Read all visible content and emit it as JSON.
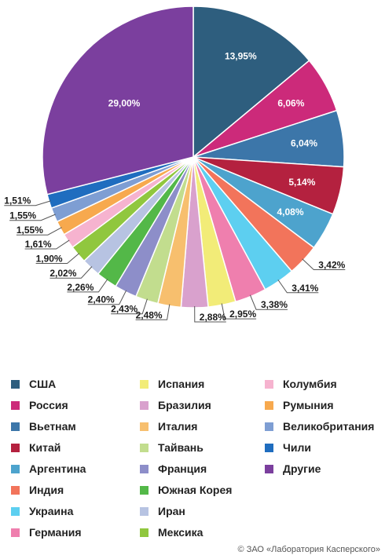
{
  "chart_data": {
    "type": "pie",
    "title": "",
    "start_angle_deg": 0,
    "direction": "clockwise",
    "slices": [
      {
        "name": "США",
        "value": 13.95,
        "label": "13,95%",
        "color": "#2e5e7e"
      },
      {
        "name": "Россия",
        "value": 6.06,
        "label": "6,06%",
        "color": "#cc2a7a"
      },
      {
        "name": "Вьетнам",
        "value": 6.04,
        "label": "6,04%",
        "color": "#3c76a9"
      },
      {
        "name": "Китай",
        "value": 5.14,
        "label": "5,14%",
        "color": "#b4213f"
      },
      {
        "name": "Аргентина",
        "value": 4.08,
        "label": "4,08%",
        "color": "#4da3cd"
      },
      {
        "name": "Индия",
        "value": 3.42,
        "label": "3,42%",
        "color": "#f2745b"
      },
      {
        "name": "Украина",
        "value": 3.41,
        "label": "3,41%",
        "color": "#5dcff0"
      },
      {
        "name": "Германия",
        "value": 3.38,
        "label": "3,38%",
        "color": "#ef7fae"
      },
      {
        "name": "Испания",
        "value": 2.95,
        "label": "2,95%",
        "color": "#f2ec78"
      },
      {
        "name": "Бразилия",
        "value": 2.88,
        "label": "2,88%",
        "color": "#d9a1cd"
      },
      {
        "name": "Италия",
        "value": 2.48,
        "label": "2,48%",
        "color": "#f7bf6e"
      },
      {
        "name": "Тайвань",
        "value": 2.43,
        "label": "2,43%",
        "color": "#c2dd8e"
      },
      {
        "name": "Франция",
        "value": 2.4,
        "label": "2,40%",
        "color": "#8d8ec9"
      },
      {
        "name": "Южная Корея",
        "value": 2.26,
        "label": "2,26%",
        "color": "#53b848"
      },
      {
        "name": "Иран",
        "value": 2.02,
        "label": "2,02%",
        "color": "#b7c3e2"
      },
      {
        "name": "Мексика",
        "value": 1.9,
        "label": "1,90%",
        "color": "#90c73e"
      },
      {
        "name": "Колумбия",
        "value": 1.61,
        "label": "1,61%",
        "color": "#f6b3cf"
      },
      {
        "name": "Румыния",
        "value": 1.55,
        "label": "1,55%",
        "color": "#f7a94e"
      },
      {
        "name": "Великобритания",
        "value": 1.55,
        "label": "1,55%",
        "color": "#7e9ed3"
      },
      {
        "name": "Чили",
        "value": 1.51,
        "label": "1,51%",
        "color": "#1f6dbf"
      },
      {
        "name": "Другие",
        "value": 29.0,
        "label": "29,00%",
        "color": "#7b3f9e"
      }
    ],
    "legend": {
      "position": "bottom",
      "columns": [
        [
          "США",
          "Россия",
          "Вьетнам",
          "Китай",
          "Аргентина",
          "Индия",
          "Украина",
          "Германия"
        ],
        [
          "Испания",
          "Бразилия",
          "Италия",
          "Тайвань",
          "Франция",
          "Южная Корея",
          "Иран",
          "Мексика"
        ],
        [
          "Колумбия",
          "Румыния",
          "Великобритания",
          "Чили",
          "Другие"
        ]
      ]
    }
  },
  "copyright": "© ЗАО «Лаборатория Касперского»"
}
